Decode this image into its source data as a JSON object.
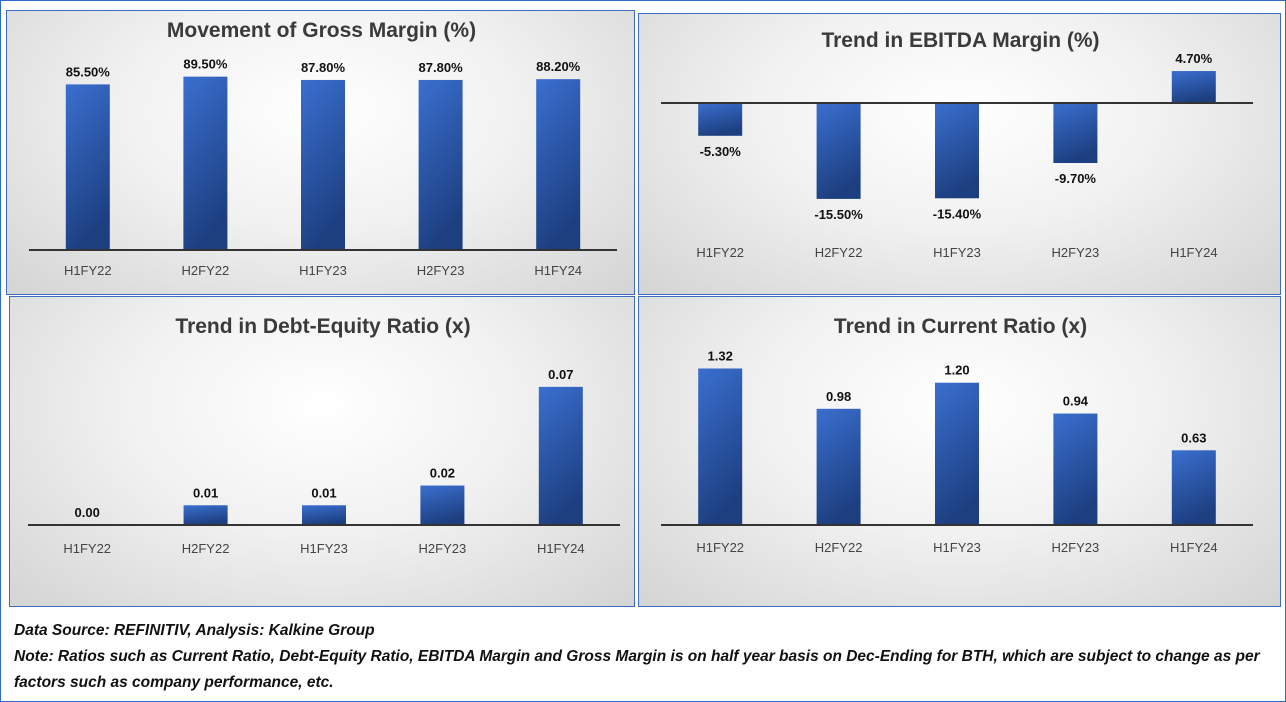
{
  "chart_data": [
    {
      "type": "bar",
      "title": "Movement of Gross Margin (%)",
      "categories": [
        "H1FY22",
        "H2FY22",
        "H1FY23",
        "H2FY23",
        "H1FY24"
      ],
      "values": [
        85.5,
        89.5,
        87.8,
        87.8,
        88.2
      ],
      "labels": [
        "85.50%",
        "89.50%",
        "87.80%",
        "87.80%",
        "88.20%"
      ],
      "ylim": [
        0,
        95
      ]
    },
    {
      "type": "bar",
      "title": "Trend in EBITDA Margin (%)",
      "categories": [
        "H1FY22",
        "H2FY22",
        "H1FY23",
        "H2FY23",
        "H1FY24"
      ],
      "values": [
        -5.3,
        -15.5,
        -15.4,
        -9.7,
        4.7
      ],
      "labels": [
        "-5.30%",
        "-15.50%",
        "-15.40%",
        "-9.70%",
        "4.70%"
      ],
      "ylim": [
        -16,
        5
      ]
    },
    {
      "type": "bar",
      "title": "Trend in Debt-Equity Ratio (x)",
      "categories": [
        "H1FY22",
        "H2FY22",
        "H1FY23",
        "H2FY23",
        "H1FY24"
      ],
      "values": [
        0.0,
        0.01,
        0.01,
        0.02,
        0.07
      ],
      "labels": [
        "0.00",
        "0.01",
        "0.01",
        "0.02",
        "0.07"
      ],
      "ylim": [
        0,
        0.075
      ]
    },
    {
      "type": "bar",
      "title": "Trend in Current Ratio (x)",
      "categories": [
        "H1FY22",
        "H2FY22",
        "H1FY23",
        "H2FY23",
        "H1FY24"
      ],
      "values": [
        1.32,
        0.98,
        1.2,
        0.94,
        0.63
      ],
      "labels": [
        "1.32",
        "0.98",
        "1.20",
        "0.94",
        "0.63"
      ],
      "ylim": [
        0,
        1.4
      ]
    }
  ],
  "colors": {
    "bar_top": "#3a6fd0",
    "bar_bottom": "#1d3f80",
    "axis": "#333333"
  },
  "footer": {
    "source": "Data Source: REFINITIV, Analysis: Kalkine Group",
    "note": "Note: Ratios such as Current Ratio, Debt-Equity Ratio, EBITDA Margin and Gross Margin is on half year basis on Dec-Ending for BTH, which are subject to change as per factors such as company performance, etc."
  }
}
